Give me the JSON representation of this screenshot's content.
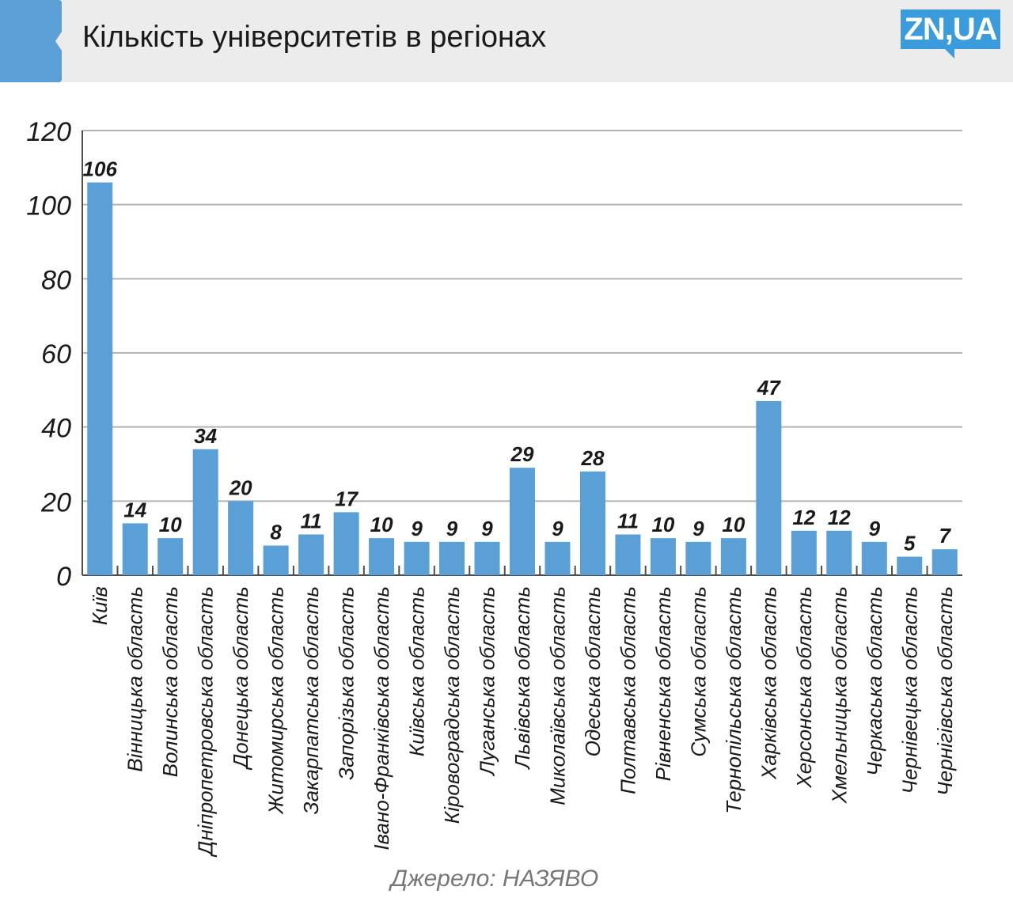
{
  "header": {
    "title": "Кількість університетів в регіонах",
    "logo_text": "ZN,UA"
  },
  "colors": {
    "accent": "#5a9fd6",
    "bar": "#5a9fd6",
    "header_bg": "#ececec",
    "logo_bg": "#3b9cdb"
  },
  "chart_data": {
    "type": "bar",
    "title": "Кількість університетів в регіонах",
    "xlabel": "",
    "ylabel": "",
    "ylim": [
      0,
      120
    ],
    "yticks": [
      0,
      20,
      40,
      60,
      80,
      100,
      120
    ],
    "grid": true,
    "legend": "none",
    "categories": [
      "Київ",
      "Вінницька область",
      "Волинська область",
      "Дніпропетровська область",
      "Донецька область",
      "Житомирська область",
      "Закарпатська область",
      "Запорізька область",
      "Івано-Франківська область",
      "Київська область",
      "Кіровоградська область",
      "Луганська область",
      "Львівська область",
      "Миколаївська область",
      "Одеська область",
      "Полтавська область",
      "Рівненська область",
      "Сумська область",
      "Тернопільська область",
      "Харківська область",
      "Херсонська область",
      "Хмельницька область",
      "Черкаська область",
      "Чернівецька область",
      "Чернігівська область"
    ],
    "values": [
      106,
      14,
      10,
      34,
      20,
      8,
      11,
      17,
      10,
      9,
      9,
      9,
      29,
      9,
      28,
      11,
      10,
      9,
      10,
      47,
      12,
      12,
      9,
      5,
      7
    ]
  },
  "source": "Джерело: НАЗЯВО"
}
